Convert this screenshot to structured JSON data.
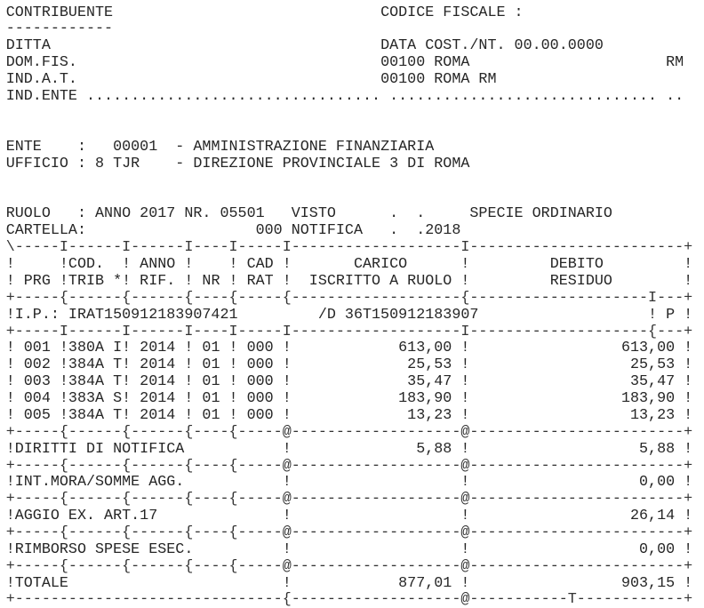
{
  "header": {
    "contribuente_label": "CONTRIBUENTE",
    "contribuente_underline": "------------",
    "codice_fiscale_label": "CODICE FISCALE :",
    "ditta_label": "DITTA",
    "data_cost": "DATA COST./NT. 00.00.0000",
    "dom_fis_label": "DOM.FIS.",
    "dom_fis_value": "00100 ROMA",
    "dom_fis_prov": "RM",
    "ind_at_label": "IND.A.T.",
    "ind_at_value": "00100 ROMA RM",
    "ind_ente_label": "IND.ENTE",
    "ind_ente_dots_1": ".................................",
    "ind_ente_dots_2": "..............................",
    "ind_ente_dots_3": ".."
  },
  "ente": {
    "ente_label": "ENTE",
    "ente_colon": ":",
    "ente_code": "00001",
    "ente_dash": "-",
    "ente_name": "AMMINISTRAZIONE FINANZIARIA",
    "ufficio_label": "UFFICIO",
    "ufficio_colon": ":",
    "ufficio_num": "8",
    "ufficio_code": "TJR",
    "ufficio_dash": "-",
    "ufficio_name": "DIREZIONE PROVINCIALE 3 DI ROMA"
  },
  "ruolo": {
    "label": "RUOLO",
    "colon": ":",
    "anno_label": "ANNO",
    "anno": "2017",
    "nr_label": "NR.",
    "nr": "05501",
    "visto_label": "VISTO",
    "visto_dot_1": ".",
    "visto_dot_2": ".",
    "specie_label": "SPECIE",
    "specie": "ORDINARIO",
    "cartella_label": "CARTELLA:",
    "cartella_num": "000",
    "notifica_label": "NOTIFICA",
    "notifica_dot": ".",
    "notifica_date": ".2018"
  },
  "table": {
    "rule_top": "\\-----I------I------I----I-----I-------------------I------------------------+",
    "head1": "!     !COD.  ! ANNO !    ! CAD !       CARICO      !         DEBITO         !",
    "head2": "! PRG !TRIB *! RIF. ! NR ! RAT !  ISCRITTO A RUOLO !         RESIDUO        !",
    "rule_head": "+-----{------{------{----{-----{-------------------{--------------------I---+",
    "ip_label": "!I.P.:",
    "ip_code": "IRAT150912183907421",
    "ip_ref": "/D 36T150912183907",
    "ip_flag_open": "!",
    "ip_flag": "P",
    "ip_flag_close": "!",
    "rule_rows": "+-----I------I------I----I-----I-------------------I--------------------{---+",
    "rows": [
      {
        "prg": "001",
        "trib": "380A",
        "flag": "I",
        "anno": "2014",
        "nr": "01",
        "rat": "000",
        "carico": "613,00",
        "debito": "613,00"
      },
      {
        "prg": "002",
        "trib": "384A",
        "flag": "T",
        "anno": "2014",
        "nr": "01",
        "rat": "000",
        "carico": "25,53",
        "debito": "25,53"
      },
      {
        "prg": "003",
        "trib": "384A",
        "flag": "T",
        "anno": "2014",
        "nr": "01",
        "rat": "000",
        "carico": "35,47",
        "debito": "35,47"
      },
      {
        "prg": "004",
        "trib": "383A",
        "flag": "S",
        "anno": "2014",
        "nr": "01",
        "rat": "000",
        "carico": "183,90",
        "debito": "183,90"
      },
      {
        "prg": "005",
        "trib": "384A",
        "flag": "T",
        "anno": "2014",
        "nr": "01",
        "rat": "000",
        "carico": "13,23",
        "debito": "13,23"
      }
    ],
    "rule_sep": "+-----{------{------{----{-----@-------------------@------------------------+",
    "summary": [
      {
        "label": "DIRITTI DI NOTIFICA",
        "carico": "5,88",
        "debito": "5,88"
      },
      {
        "label": "INT.MORA/SOMME AGG.",
        "carico": "",
        "debito": "0,00"
      },
      {
        "label": "AGGIO EX. ART.17",
        "carico": "",
        "debito": "26,14"
      },
      {
        "label": "RIMBORSO SPESE ESEC.",
        "carico": "",
        "debito": "0,00"
      },
      {
        "label": "TOTALE",
        "carico": "877,01",
        "debito": "903,15"
      }
    ],
    "rule_bottom": "+------------------------------{-------------------@-----------T------------+"
  }
}
